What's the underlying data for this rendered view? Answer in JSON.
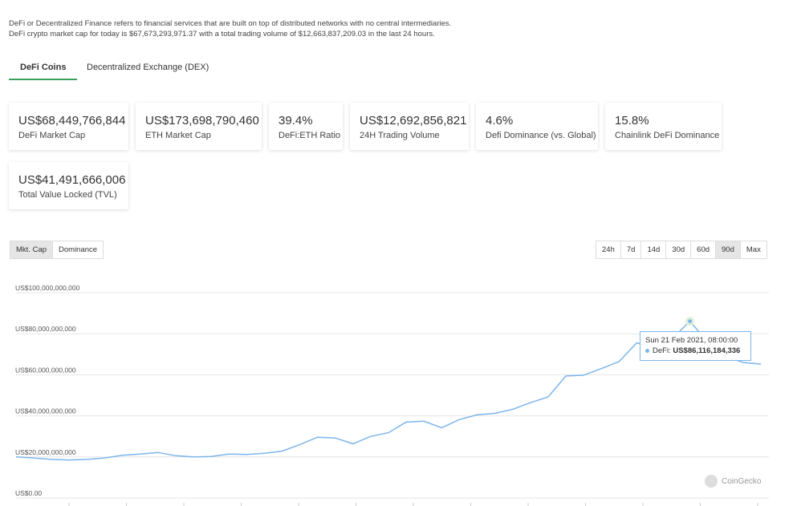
{
  "intro": {
    "line1": "DeFi or Decentralized Finance refers to financial services that are built on top of distributed networks with no central intermediaries.",
    "line2": "DeFi crypto market cap for today is $67,673,293,971.37 with a total trading volume of $12,663,837,209.03 in the last 24 hours."
  },
  "tabs": [
    {
      "label": "DeFi Coins",
      "active": true
    },
    {
      "label": "Decentralized Exchange (DEX)",
      "active": false
    }
  ],
  "stats": [
    {
      "value": "US$68,449,766,844",
      "label": "DeFi Market Cap"
    },
    {
      "value": "US$173,698,790,460",
      "label": "ETH Market Cap"
    },
    {
      "value": "39.4%",
      "label": "DeFi:ETH Ratio"
    },
    {
      "value": "US$12,692,856,821",
      "label": "24H Trading Volume"
    },
    {
      "value": "4.6%",
      "label": "Defi Dominance (vs. Global)"
    },
    {
      "value": "15.8%",
      "label": "Chainlink DeFi Dominance"
    },
    {
      "value": "US$41,491,666,006",
      "label": "Total Value Locked (TVL)"
    }
  ],
  "chart_toggle": [
    {
      "label": "Mkt. Cap",
      "active": true
    },
    {
      "label": "Dominance",
      "active": false
    }
  ],
  "ranges": [
    {
      "label": "24h",
      "active": false
    },
    {
      "label": "7d",
      "active": false
    },
    {
      "label": "14d",
      "active": false
    },
    {
      "label": "30d",
      "active": false
    },
    {
      "label": "60d",
      "active": false
    },
    {
      "label": "90d",
      "active": true
    },
    {
      "label": "Max",
      "active": false
    }
  ],
  "tooltip": {
    "date": "Sun 21 Feb 2021, 08:00:00",
    "series": "DeFi:",
    "value": "US$86,116,184,336"
  },
  "credit": "CoinGecko",
  "chart_data": {
    "type": "line",
    "series": [
      {
        "name": "DeFi",
        "color": "#7cb5ec",
        "values": [
          20.0,
          19.5,
          18.8,
          18.5,
          18.8,
          19.5,
          20.8,
          21.4,
          22.2,
          20.6,
          20.0,
          20.2,
          21.4,
          21.2,
          21.8,
          22.8,
          26.0,
          29.6,
          29.2,
          26.4,
          30.0,
          31.8,
          37.0,
          37.4,
          34.2,
          38.2,
          40.5,
          41.2,
          43.2,
          46.4,
          49.2,
          59.4,
          59.8,
          63.0,
          66.4,
          75.6,
          72.8,
          77.6,
          86.1,
          76.0,
          69.0,
          66.0,
          65.2
        ]
      }
    ],
    "y_ticks": [
      "US$0.00",
      "US$20,000,000,000",
      "US$40,000,000,000",
      "US$60,000,000,000",
      "US$80,000,000,000",
      "US$100,000,000,000"
    ],
    "ylim": [
      0,
      100
    ],
    "highlight_index": 38,
    "grid": true,
    "legend": "none"
  }
}
